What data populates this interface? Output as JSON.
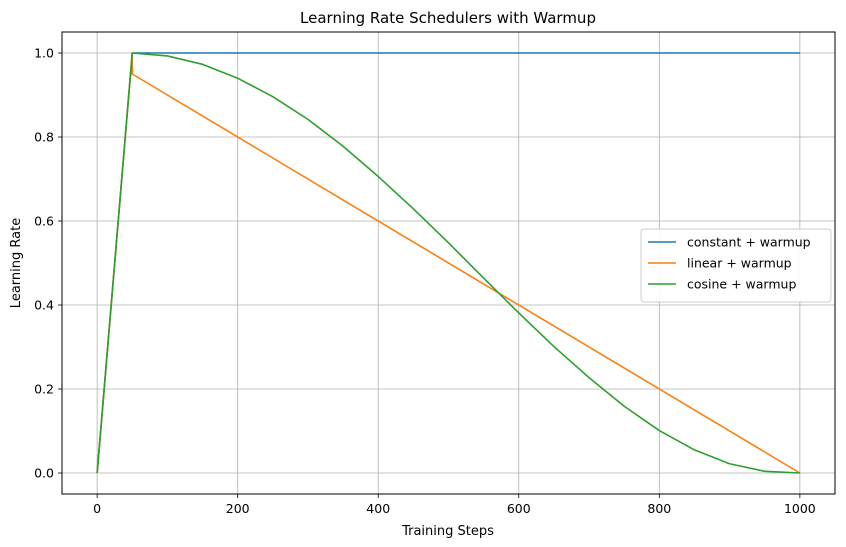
{
  "chart_data": {
    "type": "line",
    "title": "Learning Rate Schedulers with Warmup",
    "xlabel": "Training Steps",
    "ylabel": "Learning Rate",
    "xlim": [
      -50,
      1050
    ],
    "ylim": [
      -0.05,
      1.05
    ],
    "xticks": [
      0,
      200,
      400,
      600,
      800,
      1000
    ],
    "xtick_labels": [
      "0",
      "200",
      "400",
      "600",
      "800",
      "1000"
    ],
    "yticks": [
      0.0,
      0.2,
      0.4,
      0.6,
      0.8,
      1.0
    ],
    "ytick_labels": [
      "0.0",
      "0.2",
      "0.4",
      "0.6",
      "0.8",
      "1.0"
    ],
    "grid": true,
    "legend_position": "center-right",
    "warmup_steps": 50,
    "total_steps": 1000,
    "series": [
      {
        "name": "constant + warmup",
        "color": "#1f77b4",
        "x": [
          0,
          50,
          1000
        ],
        "y": [
          0.0,
          1.0,
          1.0
        ]
      },
      {
        "name": "linear + warmup",
        "color": "#ff7f0e",
        "x": [
          0,
          50,
          50,
          1000
        ],
        "y": [
          0.0,
          1.0,
          0.95,
          0.0
        ]
      },
      {
        "name": "cosine + warmup",
        "color": "#2ca02c",
        "x": [
          0,
          50,
          100,
          150,
          200,
          250,
          300,
          350,
          400,
          450,
          500,
          550,
          600,
          650,
          700,
          750,
          800,
          850,
          900,
          950,
          1000
        ],
        "y": [
          0.0,
          1.0,
          0.993,
          0.973,
          0.94,
          0.896,
          0.842,
          0.778,
          0.706,
          0.629,
          0.548,
          0.464,
          0.381,
          0.301,
          0.227,
          0.159,
          0.101,
          0.055,
          0.022,
          0.004,
          0.0
        ]
      }
    ]
  }
}
